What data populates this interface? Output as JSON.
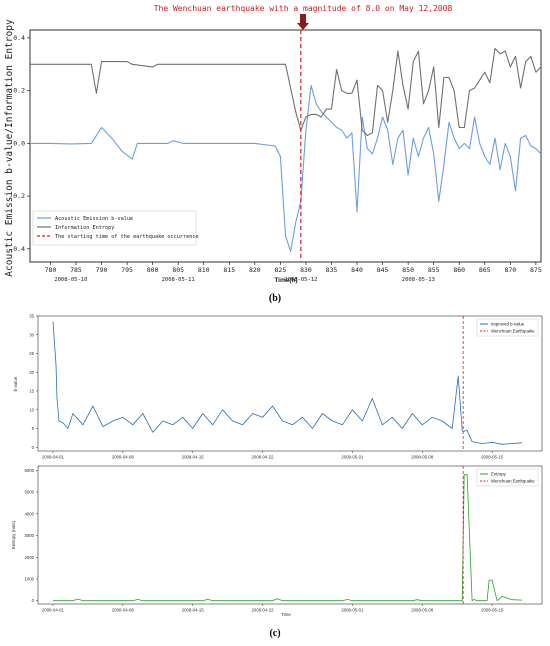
{
  "panel_b_label": "(b)",
  "panel_c_label": "(c)",
  "annotation": "The Wenchuan earthquake with a magnitude of 8.0 on May 12,2008",
  "colors": {
    "blue": "#6f9fdc",
    "gray": "#707070",
    "dashed": "#d42020",
    "arrow": "#8b1a1a",
    "steel": "#2a6fb0",
    "green": "#2ca02c"
  },
  "chart_data": [
    {
      "type": "line",
      "ylabel": "Acoustic Emission b-value/Information Entropy",
      "xlabel": "Time(h)",
      "xlim": [
        776,
        876
      ],
      "ylim": [
        -0.45,
        0.43
      ],
      "xticks": [
        780,
        785,
        790,
        795,
        800,
        805,
        810,
        815,
        820,
        825,
        830,
        835,
        840,
        845,
        850,
        855,
        860,
        865,
        870,
        875
      ],
      "yticks": [
        -0.4,
        -0.2,
        0.0,
        0.2,
        0.4
      ],
      "ytick_labels": [
        "-0.4",
        "-0.2",
        "0.0",
        "0.2",
        "0.4"
      ],
      "date_labels": [
        {
          "at": 784,
          "text": "2008-05-10"
        },
        {
          "at": 805,
          "text": "2008-05-11"
        },
        {
          "at": 829,
          "text": "2008-05-12"
        },
        {
          "at": 852,
          "text": "2008-05-13"
        }
      ],
      "vline": 829,
      "legend": [
        "Acoustic Emission b-value",
        "Information Entropy",
        "The starting time of the earthquake occurrence"
      ],
      "series": [
        {
          "name": "Acoustic Emission b-value",
          "x": [
            776,
            780,
            784,
            788,
            790,
            792,
            794,
            796,
            797,
            800,
            803,
            804,
            806,
            808,
            812,
            816,
            820,
            824,
            825,
            826,
            827,
            828,
            829,
            830,
            831,
            832,
            833,
            834,
            835,
            836,
            837,
            838,
            839,
            840,
            841,
            842,
            843,
            844,
            845,
            846,
            847,
            848,
            849,
            850,
            851,
            852,
            853,
            854,
            855,
            856,
            857,
            858,
            859,
            860,
            861,
            862,
            863,
            864,
            865,
            866,
            867,
            868,
            869,
            870,
            871,
            872,
            873,
            874,
            875,
            876
          ],
          "y": [
            0.0,
            0.0,
            -0.002,
            0.0,
            0.06,
            0.02,
            -0.03,
            -0.06,
            0.0,
            0.0,
            0.0,
            0.01,
            0.0,
            0.0,
            0.0,
            0.0,
            0.0,
            -0.01,
            -0.05,
            -0.35,
            -0.41,
            -0.3,
            -0.22,
            0.05,
            0.22,
            0.15,
            0.12,
            0.1,
            0.08,
            0.06,
            0.05,
            0.02,
            0.04,
            -0.26,
            0.1,
            -0.02,
            -0.04,
            0.02,
            0.1,
            0.05,
            -0.08,
            0.02,
            0.05,
            -0.12,
            0.02,
            -0.05,
            0.02,
            0.06,
            -0.04,
            -0.22,
            -0.08,
            0.08,
            0.02,
            -0.02,
            0.0,
            -0.02,
            0.1,
            0.0,
            -0.05,
            -0.08,
            0.02,
            -0.1,
            0.0,
            -0.05,
            -0.18,
            0.02,
            0.03,
            -0.01,
            -0.02,
            -0.04
          ]
        },
        {
          "name": "Information Entropy",
          "x": [
            776,
            780,
            786,
            788,
            789,
            790,
            791,
            795,
            796,
            800,
            801,
            802,
            805,
            812,
            818,
            824,
            826,
            827,
            828,
            829,
            830,
            831,
            832,
            833,
            834,
            835,
            836,
            837,
            838,
            839,
            840,
            841,
            842,
            843,
            844,
            845,
            846,
            847,
            848,
            849,
            850,
            851,
            852,
            853,
            854,
            855,
            856,
            857,
            858,
            859,
            860,
            861,
            862,
            863,
            864,
            865,
            866,
            867,
            868,
            869,
            870,
            871,
            872,
            873,
            874,
            875,
            876
          ],
          "y": [
            0.3,
            0.3,
            0.3,
            0.3,
            0.19,
            0.31,
            0.31,
            0.31,
            0.3,
            0.29,
            0.3,
            0.3,
            0.3,
            0.3,
            0.3,
            0.3,
            0.3,
            0.21,
            0.12,
            0.05,
            0.1,
            0.11,
            0.11,
            0.1,
            0.13,
            0.13,
            0.28,
            0.2,
            0.19,
            0.19,
            0.24,
            0.05,
            0.03,
            0.04,
            0.22,
            0.2,
            0.08,
            0.2,
            0.35,
            0.22,
            0.13,
            0.31,
            0.35,
            0.15,
            0.2,
            0.29,
            0.06,
            0.25,
            0.25,
            0.2,
            0.06,
            0.06,
            0.2,
            0.21,
            0.24,
            0.27,
            0.23,
            0.36,
            0.34,
            0.35,
            0.29,
            0.33,
            0.21,
            0.31,
            0.33,
            0.27,
            0.29
          ]
        }
      ]
    },
    {
      "type": "line",
      "ylabel": "b-value",
      "ylim": [
        -1,
        35
      ],
      "yticks": [
        0,
        5,
        10,
        15,
        20,
        25,
        30,
        35
      ],
      "ytick_labels": [
        "0",
        "5",
        "10",
        "15",
        "20",
        "25",
        "30",
        "35"
      ],
      "xtick_labels": [
        "2008-04-01",
        "2008-04-08",
        "2008-04-15",
        "2008-04-22",
        "2008-05-01",
        "2008-05-08",
        "2008-05-15"
      ],
      "xtick_days": [
        0,
        7,
        14,
        21,
        30,
        37,
        44
      ],
      "xlim_days": [
        -1.5,
        49
      ],
      "vline_day": 41.1,
      "legend": [
        "Improved b-value",
        "Wenchuan Earthquake"
      ],
      "series": [
        {
          "name": "Improved b-value",
          "x_days": [
            0,
            0.3,
            0.4,
            0.6,
            1,
            1.5,
            2,
            3,
            4,
            5,
            6,
            7,
            8,
            9,
            10,
            11,
            12,
            13,
            14,
            15,
            16,
            17,
            18,
            19,
            20,
            21,
            22,
            23,
            24,
            25,
            26,
            27,
            28,
            29,
            30,
            31,
            32,
            33,
            34,
            35,
            36,
            37,
            38,
            39,
            40,
            40.6,
            41,
            41.1,
            41.5,
            42,
            43,
            44,
            45,
            46,
            47
          ],
          "y": [
            33.5,
            22,
            13,
            7,
            6.5,
            5,
            9,
            6,
            11,
            5.5,
            7,
            8,
            6,
            9,
            4,
            7,
            6,
            8,
            5,
            9,
            6,
            10,
            7,
            6,
            9,
            8,
            11,
            7,
            6,
            8,
            5,
            9,
            7,
            6,
            10,
            7,
            13,
            6,
            8,
            5,
            9,
            6,
            8,
            7,
            5,
            19,
            4.5,
            4.2,
            4.5,
            1.5,
            1.0,
            1.3,
            0.8,
            1.0,
            1.2
          ]
        }
      ]
    },
    {
      "type": "line",
      "ylabel": "Entropy (nats)",
      "xlabel": "Time",
      "ylim": [
        -150,
        6200
      ],
      "yticks": [
        0,
        1000,
        2000,
        3000,
        4000,
        5000,
        6000
      ],
      "ytick_labels": [
        "0",
        "1000",
        "2000",
        "3000",
        "4000",
        "5000",
        "6000"
      ],
      "xtick_labels": [
        "2008-04-01",
        "2008-04-08",
        "2008-04-15",
        "2008-04-22",
        "2008-05-01",
        "2008-05-08",
        "2008-05-15"
      ],
      "xtick_days": [
        0,
        7,
        14,
        21,
        30,
        37,
        44
      ],
      "xlim_days": [
        -1.5,
        49
      ],
      "vline_day": 41.1,
      "legend": [
        "Entropy",
        "Wenchuan Earthquake"
      ],
      "series": [
        {
          "name": "Entropy",
          "x_days": [
            0,
            2,
            2.5,
            3,
            8,
            8.5,
            9,
            15,
            15.5,
            16,
            22,
            22.5,
            23,
            29,
            29.5,
            30,
            36,
            36.5,
            37,
            41.0,
            41.2,
            41.5,
            42.0,
            42.2,
            42.5,
            43.5,
            43.7,
            44.0,
            44.5,
            45,
            46,
            47
          ],
          "y": [
            0,
            0,
            80,
            0,
            0,
            60,
            0,
            0,
            70,
            0,
            0,
            90,
            0,
            0,
            60,
            0,
            0,
            50,
            0,
            0,
            5800,
            5800,
            0,
            60,
            0,
            0,
            950,
            950,
            0,
            200,
            50,
            30
          ]
        }
      ]
    }
  ]
}
